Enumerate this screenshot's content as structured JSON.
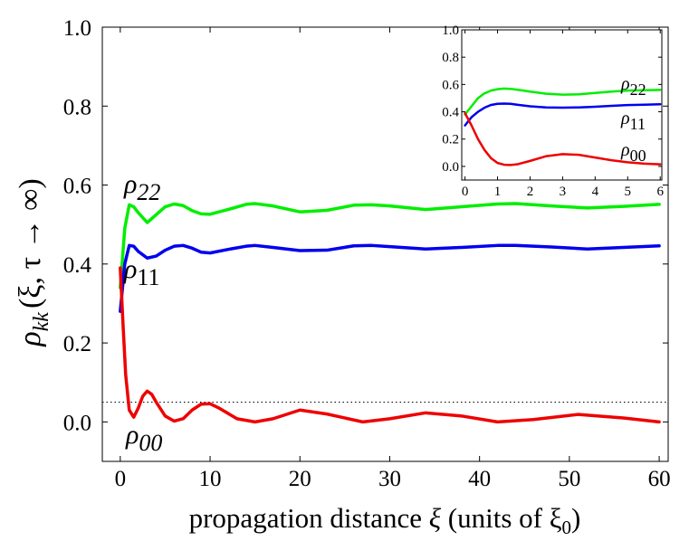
{
  "chart_data": [
    {
      "type": "line",
      "xlabel_text": "propagation distance",
      "xlabel_symbol": "ξ",
      "xlabel_units": "(units of ξ",
      "xlabel_units_sub": "0",
      "xlabel_close": ")",
      "ylabel_main": "ρ",
      "ylabel_sub": "kk",
      "ylabel_args": "(ξ, τ → ∞)",
      "xlim": [
        -2,
        61
      ],
      "ylim": [
        -0.1,
        1.0
      ],
      "x_ticks": [
        0,
        10,
        20,
        30,
        40,
        50,
        60
      ],
      "x_tick_labels": [
        "0",
        "10",
        "20",
        "30",
        "40",
        "50",
        "60"
      ],
      "y_ticks": [
        0.0,
        0.2,
        0.4,
        0.6,
        0.8,
        1.0
      ],
      "y_tick_labels": [
        "0.0",
        "0.2",
        "0.4",
        "0.6",
        "0.8",
        "1.0"
      ],
      "reference_line": {
        "y": 0.05,
        "style": "dotted"
      },
      "series": [
        {
          "name": "ρ22",
          "label_main": "ρ",
          "label_sub": "22",
          "color": "#00ee00",
          "x": [
            0,
            0.5,
            1,
            1.5,
            2,
            3,
            4,
            5,
            6,
            7,
            8,
            9,
            10,
            12,
            14,
            15,
            17,
            20,
            23,
            26,
            28,
            30,
            34,
            38,
            42,
            44,
            48,
            52,
            56,
            60
          ],
          "y": [
            0.34,
            0.49,
            0.55,
            0.545,
            0.53,
            0.505,
            0.525,
            0.545,
            0.552,
            0.548,
            0.535,
            0.527,
            0.526,
            0.538,
            0.551,
            0.553,
            0.547,
            0.532,
            0.536,
            0.549,
            0.55,
            0.547,
            0.538,
            0.545,
            0.552,
            0.553,
            0.547,
            0.542,
            0.546,
            0.551
          ]
        },
        {
          "name": "ρ11",
          "label_main": "ρ",
          "label_sub": "11",
          "color": "#0000ee",
          "x": [
            0,
            0.5,
            1,
            1.5,
            2,
            3,
            4,
            5,
            6,
            7,
            8,
            9,
            10,
            12,
            14,
            15,
            17,
            20,
            23,
            26,
            28,
            30,
            34,
            38,
            42,
            44,
            48,
            52,
            56,
            60
          ],
          "y": [
            0.28,
            0.4,
            0.447,
            0.445,
            0.432,
            0.415,
            0.42,
            0.435,
            0.445,
            0.447,
            0.44,
            0.43,
            0.428,
            0.437,
            0.445,
            0.447,
            0.442,
            0.434,
            0.435,
            0.446,
            0.447,
            0.444,
            0.438,
            0.442,
            0.447,
            0.447,
            0.443,
            0.438,
            0.442,
            0.446
          ]
        },
        {
          "name": "ρ00",
          "label_main": "ρ",
          "label_sub": "00",
          "color": "#ee0000",
          "x": [
            0,
            0.3,
            0.6,
            1,
            1.5,
            2,
            2.5,
            3,
            3.5,
            4,
            5,
            6,
            7,
            8,
            9,
            10,
            11,
            13,
            15,
            17,
            20,
            23,
            27,
            30,
            34,
            38,
            42,
            46,
            51,
            56,
            60
          ],
          "y": [
            0.39,
            0.25,
            0.12,
            0.03,
            0.012,
            0.035,
            0.065,
            0.078,
            0.07,
            0.05,
            0.015,
            0.002,
            0.008,
            0.03,
            0.045,
            0.046,
            0.035,
            0.008,
            0.0,
            0.008,
            0.03,
            0.02,
            0.0,
            0.008,
            0.023,
            0.015,
            0.0,
            0.006,
            0.019,
            0.01,
            0.0
          ]
        }
      ]
    },
    {
      "type": "line",
      "xlim": [
        -0.1,
        6.05
      ],
      "ylim": [
        -0.1,
        1.0
      ],
      "x_ticks": [
        0,
        1,
        2,
        3,
        4,
        5,
        6
      ],
      "x_tick_labels": [
        "0",
        "1",
        "2",
        "3",
        "4",
        "5",
        "6"
      ],
      "y_ticks": [
        0.0,
        0.2,
        0.4,
        0.6,
        0.8,
        1.0
      ],
      "y_tick_labels": [
        "0.0",
        "0.2",
        "0.4",
        "0.6",
        "0.8",
        "1.0"
      ],
      "series": [
        {
          "name": "ρ22",
          "label_main": "ρ",
          "label_sub": "22",
          "color": "#00ee00",
          "x": [
            0,
            0.2,
            0.4,
            0.6,
            0.8,
            1.0,
            1.2,
            1.4,
            1.6,
            2.0,
            2.5,
            3.0,
            3.5,
            4.0,
            4.5,
            5.0,
            5.5,
            6.0
          ],
          "y": [
            0.38,
            0.44,
            0.5,
            0.535,
            0.555,
            0.565,
            0.57,
            0.568,
            0.562,
            0.548,
            0.532,
            0.525,
            0.528,
            0.538,
            0.548,
            0.555,
            0.558,
            0.56
          ]
        },
        {
          "name": "ρ11",
          "label_main": "ρ",
          "label_sub": "11",
          "color": "#0000ee",
          "x": [
            0,
            0.2,
            0.4,
            0.6,
            0.8,
            1.0,
            1.2,
            1.4,
            1.6,
            2.0,
            2.5,
            3.0,
            3.5,
            4.0,
            4.5,
            5.0,
            5.5,
            6.0
          ],
          "y": [
            0.3,
            0.36,
            0.4,
            0.43,
            0.45,
            0.458,
            0.46,
            0.458,
            0.452,
            0.44,
            0.432,
            0.43,
            0.432,
            0.437,
            0.443,
            0.449,
            0.452,
            0.455
          ]
        },
        {
          "name": "ρ00",
          "label_main": "ρ",
          "label_sub": "00",
          "color": "#ee0000",
          "x": [
            0,
            0.2,
            0.4,
            0.6,
            0.8,
            1.0,
            1.2,
            1.4,
            1.6,
            2.0,
            2.5,
            3.0,
            3.5,
            4.0,
            4.5,
            5.0,
            5.5,
            6.0
          ],
          "y": [
            0.39,
            0.3,
            0.2,
            0.12,
            0.06,
            0.025,
            0.012,
            0.01,
            0.015,
            0.04,
            0.075,
            0.09,
            0.085,
            0.065,
            0.045,
            0.03,
            0.02,
            0.015
          ]
        }
      ]
    }
  ]
}
